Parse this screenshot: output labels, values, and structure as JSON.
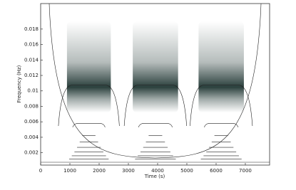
{
  "chart_data": {
    "type": "heatmap",
    "xlabel": "Time (s)",
    "ylabel": "Frequency (Hz)",
    "xlim": [
      0,
      7830
    ],
    "ylim": [
      0.0004,
      0.0213
    ],
    "xticks": [
      0,
      1000,
      2000,
      3000,
      4000,
      5000,
      6000,
      7000
    ],
    "yticks": [
      0.002,
      0.004,
      0.006,
      0.008,
      0.01,
      0.012,
      0.014,
      0.016,
      0.018
    ],
    "color": "#2b403d",
    "bursts": [
      {
        "start": 900,
        "end": 2400,
        "frequency": 0.0105
      },
      {
        "start": 3150,
        "end": 4700,
        "frequency": 0.0105
      },
      {
        "start": 5400,
        "end": 6950,
        "frequency": 0.0105
      }
    ]
  }
}
